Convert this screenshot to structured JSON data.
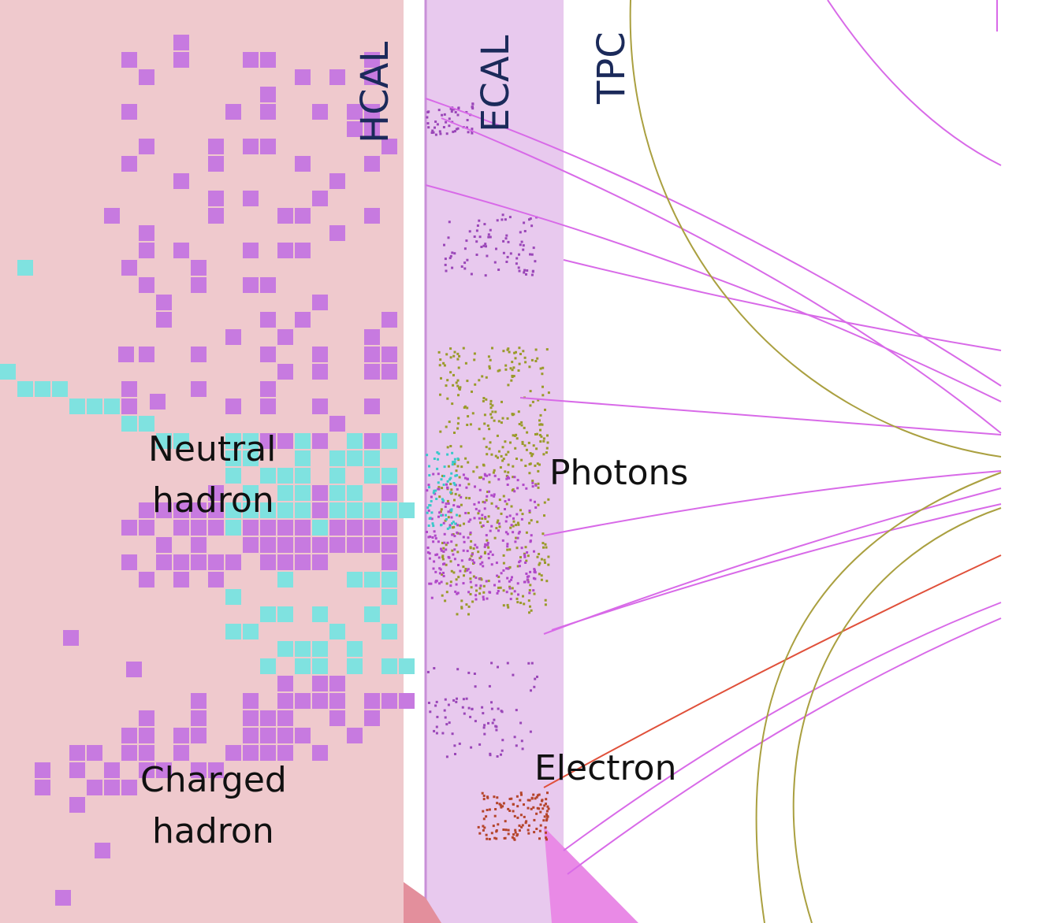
{
  "detectors": {
    "hcal": "HCAL",
    "ecal": "ECAL",
    "tpc": "TPC"
  },
  "labels": {
    "neutral_line1": "Neutral",
    "neutral_line2": "hadron",
    "photons": "Photons",
    "charged_line1": "Charged",
    "charged_line2": "hadron",
    "electron": "Electron"
  },
  "colors": {
    "hcal_bg": "#efc9cd",
    "ecal_bg": "#e8c9ee",
    "charged_hits": "#c77ae0",
    "neutral_hits": "#7fe2e0",
    "photon_hits": "#9a9a2a",
    "electron_hits": "#b5442a",
    "track_magenta": "#d86ae8",
    "track_olive": "#aaa040",
    "track_red": "#e0503a",
    "detector_text": "#1b2a5a"
  }
}
